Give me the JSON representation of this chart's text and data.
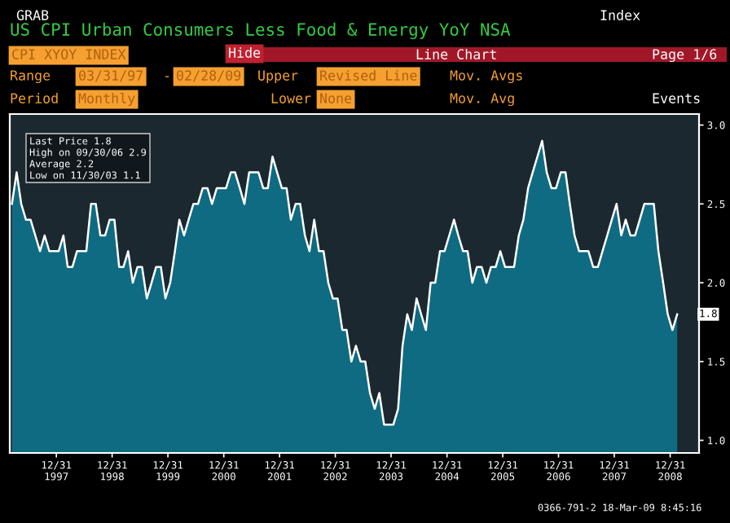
{
  "chart_data": {
    "type": "area",
    "title": "US CPI Urban Consumers Less Food & Energy YoY NSA",
    "x": [
      "1997-03",
      "1997-04",
      "1997-05",
      "1997-06",
      "1997-07",
      "1997-08",
      "1997-09",
      "1997-10",
      "1997-11",
      "1997-12",
      "1998-01",
      "1998-02",
      "1998-03",
      "1998-04",
      "1998-05",
      "1998-06",
      "1998-07",
      "1998-08",
      "1998-09",
      "1998-10",
      "1998-11",
      "1998-12",
      "1999-01",
      "1999-02",
      "1999-03",
      "1999-04",
      "1999-05",
      "1999-06",
      "1999-07",
      "1999-08",
      "1999-09",
      "1999-10",
      "1999-11",
      "1999-12",
      "2000-01",
      "2000-02",
      "2000-03",
      "2000-04",
      "2000-05",
      "2000-06",
      "2000-07",
      "2000-08",
      "2000-09",
      "2000-10",
      "2000-11",
      "2000-12",
      "2001-01",
      "2001-02",
      "2001-03",
      "2001-04",
      "2001-05",
      "2001-06",
      "2001-07",
      "2001-08",
      "2001-09",
      "2001-10",
      "2001-11",
      "2001-12",
      "2002-01",
      "2002-02",
      "2002-03",
      "2002-04",
      "2002-05",
      "2002-06",
      "2002-07",
      "2002-08",
      "2002-09",
      "2002-10",
      "2002-11",
      "2002-12",
      "2003-01",
      "2003-02",
      "2003-03",
      "2003-04",
      "2003-05",
      "2003-06",
      "2003-07",
      "2003-08",
      "2003-09",
      "2003-10",
      "2003-11",
      "2003-12",
      "2004-01",
      "2004-02",
      "2004-03",
      "2004-04",
      "2004-05",
      "2004-06",
      "2004-07",
      "2004-08",
      "2004-09",
      "2004-10",
      "2004-11",
      "2004-12",
      "2005-01",
      "2005-02",
      "2005-03",
      "2005-04",
      "2005-05",
      "2005-06",
      "2005-07",
      "2005-08",
      "2005-09",
      "2005-10",
      "2005-11",
      "2005-12",
      "2006-01",
      "2006-02",
      "2006-03",
      "2006-04",
      "2006-05",
      "2006-06",
      "2006-07",
      "2006-08",
      "2006-09",
      "2006-10",
      "2006-11",
      "2006-12",
      "2007-01",
      "2007-02",
      "2007-03",
      "2007-04",
      "2007-05",
      "2007-06",
      "2007-07",
      "2007-08",
      "2007-09",
      "2007-10",
      "2007-11",
      "2007-12",
      "2008-01",
      "2008-02",
      "2008-03",
      "2008-04",
      "2008-05",
      "2008-06",
      "2008-07",
      "2008-08",
      "2008-09",
      "2008-10",
      "2008-11",
      "2008-12",
      "2009-01",
      "2009-02"
    ],
    "series": [
      {
        "color": "#0f6b82",
        "values": [
          2.5,
          2.7,
          2.5,
          2.4,
          2.4,
          2.3,
          2.2,
          2.3,
          2.2,
          2.2,
          2.2,
          2.3,
          2.1,
          2.1,
          2.2,
          2.2,
          2.2,
          2.5,
          2.5,
          2.3,
          2.3,
          2.4,
          2.4,
          2.1,
          2.1,
          2.2,
          2.0,
          2.1,
          2.1,
          1.9,
          2.0,
          2.1,
          2.1,
          1.9,
          2.0,
          2.2,
          2.4,
          2.3,
          2.4,
          2.5,
          2.5,
          2.6,
          2.6,
          2.5,
          2.6,
          2.6,
          2.6,
          2.7,
          2.7,
          2.6,
          2.5,
          2.7,
          2.7,
          2.7,
          2.6,
          2.6,
          2.8,
          2.7,
          2.6,
          2.6,
          2.4,
          2.5,
          2.5,
          2.3,
          2.2,
          2.4,
          2.2,
          2.2,
          2.0,
          1.9,
          1.9,
          1.7,
          1.7,
          1.5,
          1.6,
          1.5,
          1.5,
          1.3,
          1.2,
          1.3,
          1.1,
          1.1,
          1.1,
          1.2,
          1.6,
          1.8,
          1.7,
          1.9,
          1.8,
          1.7,
          2.0,
          2.0,
          2.2,
          2.2,
          2.3,
          2.4,
          2.3,
          2.2,
          2.2,
          2.0,
          2.1,
          2.1,
          2.0,
          2.1,
          2.1,
          2.2,
          2.1,
          2.1,
          2.1,
          2.3,
          2.4,
          2.6,
          2.7,
          2.8,
          2.9,
          2.7,
          2.6,
          2.6,
          2.7,
          2.7,
          2.5,
          2.3,
          2.2,
          2.2,
          2.2,
          2.1,
          2.1,
          2.2,
          2.3,
          2.4,
          2.5,
          2.3,
          2.4,
          2.3,
          2.3,
          2.4,
          2.5,
          2.5,
          2.5,
          2.2,
          2.0,
          1.8,
          1.7,
          1.8
        ]
      }
    ],
    "xlim": [
      "1997-03-01",
      "2009-07-08"
    ],
    "xticks": [
      {
        "value": "1997-12-31",
        "label": "12/31\n1997"
      },
      {
        "value": "1998-12-31",
        "label": "12/31\n1998"
      },
      {
        "value": "1999-12-31",
        "label": "12/31\n1999"
      },
      {
        "value": "2000-12-31",
        "label": "12/31\n2000"
      },
      {
        "value": "2001-12-31",
        "label": "12/31\n2001"
      },
      {
        "value": "2002-12-31",
        "label": "12/31\n2002"
      },
      {
        "value": "2003-12-31",
        "label": "12/31\n2003"
      },
      {
        "value": "2004-12-31",
        "label": "12/31\n2004"
      },
      {
        "value": "2005-12-31",
        "label": "12/31\n2005"
      },
      {
        "value": "2006-12-31",
        "label": "12/31\n2006"
      },
      {
        "value": "2007-12-31",
        "label": "12/31\n2007"
      },
      {
        "value": "2008-12-31",
        "label": "12/31\n2008"
      }
    ],
    "ylim": [
      0.92,
      3.07
    ],
    "yticks": [
      {
        "value": 1.0,
        "label": "1.0"
      },
      {
        "value": 1.5,
        "label": "1.5"
      },
      {
        "value": 2.0,
        "label": "2.0"
      },
      {
        "value": 2.5,
        "label": "2.5"
      },
      {
        "value": 3.0,
        "label": "3.0"
      }
    ],
    "grid": false,
    "legend": false,
    "annotations": [
      "GRAB",
      "Index",
      "CPI XYOY INDEX",
      "Hide",
      "Line Chart",
      "Page 1/6",
      "Range",
      "03/31/97",
      "-",
      "02/28/09",
      "Upper",
      "Revised Line",
      "Mov. Avgs",
      "Period",
      "Monthly",
      "Lower",
      "None",
      "Mov. Avg",
      "Events",
      "Last Price 1.8",
      "High on 09/30/06 2.9",
      "Average 2.2",
      "Low on 11/30/03 1.1",
      "0366-791-2 18-Mar-09 8:45:16",
      {
        "text": "1.8",
        "x": "2009-02",
        "y": 1.8
      }
    ]
  }
}
